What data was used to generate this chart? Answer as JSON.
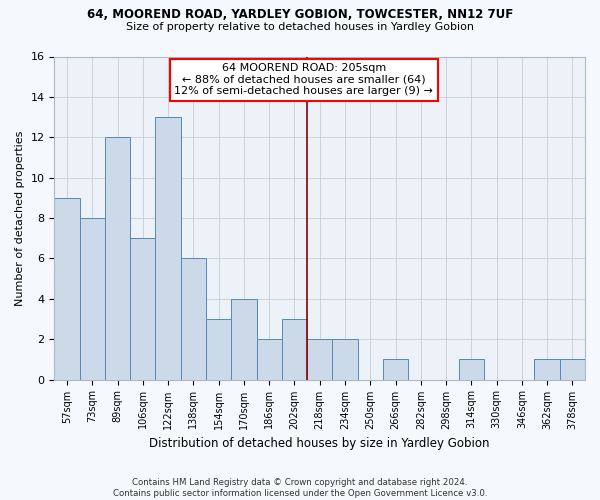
{
  "title1": "64, MOOREND ROAD, YARDLEY GOBION, TOWCESTER, NN12 7UF",
  "title2": "Size of property relative to detached houses in Yardley Gobion",
  "xlabel": "Distribution of detached houses by size in Yardley Gobion",
  "ylabel": "Number of detached properties",
  "bar_labels": [
    "57sqm",
    "73sqm",
    "89sqm",
    "106sqm",
    "122sqm",
    "138sqm",
    "154sqm",
    "170sqm",
    "186sqm",
    "202sqm",
    "218sqm",
    "234sqm",
    "250sqm",
    "266sqm",
    "282sqm",
    "298sqm",
    "314sqm",
    "330sqm",
    "346sqm",
    "362sqm",
    "378sqm"
  ],
  "bar_values": [
    9,
    8,
    12,
    7,
    13,
    6,
    3,
    4,
    2,
    3,
    2,
    2,
    0,
    1,
    0,
    0,
    1,
    0,
    0,
    1,
    1
  ],
  "bar_color": "#ccd9e8",
  "bar_edge_color": "#5588bb",
  "annotation_title": "64 MOOREND ROAD: 205sqm",
  "annotation_line1": "← 88% of detached houses are smaller (64)",
  "annotation_line2": "12% of semi-detached houses are larger (9) →",
  "vline_x": 9.5,
  "ylim": [
    0,
    16
  ],
  "yticks": [
    0,
    2,
    4,
    6,
    8,
    10,
    12,
    14,
    16
  ],
  "footer1": "Contains HM Land Registry data © Crown copyright and database right 2024.",
  "footer2": "Contains public sector information licensed under the Open Government Licence v3.0.",
  "bg_color": "#edf2f8",
  "grid_color": "#c5cdd8",
  "fig_bg_color": "#f5f8fc"
}
